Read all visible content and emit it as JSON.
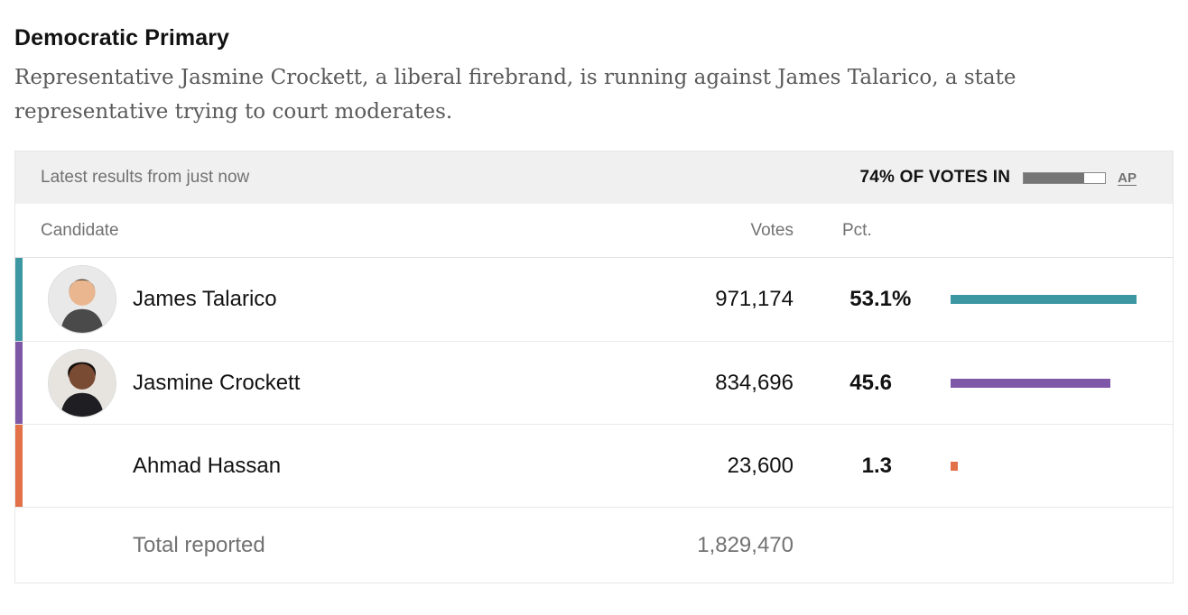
{
  "page": {
    "title": "Democratic Primary",
    "description": "Representative Jasmine Crockett, a liberal firebrand, is running against James Talarico, a state representative trying to court moderates."
  },
  "results_card": {
    "status_bar": {
      "latest_label": "Latest results from just now",
      "votes_in_label": "74% OF VOTES IN",
      "votes_in_pct": 74,
      "source_label": "AP"
    },
    "table": {
      "columns": {
        "candidate": "Candidate",
        "votes": "Votes",
        "pct": "Pct."
      },
      "candidates": [
        {
          "name": "James Talarico",
          "votes": "971,174",
          "pct": 53.1,
          "pct_display": "53.1",
          "pct_suffix": "%",
          "color": "#3d97a3",
          "has_avatar": true,
          "avatar": {
            "bg": "#e9e9e9",
            "skin": "#eab690",
            "hair": "#241f1c",
            "shirt": "#4a4a4a"
          }
        },
        {
          "name": "Jasmine Crockett",
          "votes": "834,696",
          "pct": 45.6,
          "pct_display": "45.6",
          "pct_suffix": "",
          "color": "#7e58a7",
          "has_avatar": true,
          "avatar": {
            "bg": "#e7e4e0",
            "skin": "#7a4b33",
            "hair": "#16100d",
            "shirt": "#1f1f23"
          }
        },
        {
          "name": "Ahmad Hassan",
          "votes": "23,600",
          "pct": 1.3,
          "pct_display": "1.3",
          "pct_suffix": "",
          "color": "#e2714a",
          "has_avatar": false,
          "avatar": {
            "bg": "#ececec",
            "skin": "#d9a06e",
            "hair": "#2a2420",
            "shirt": "#3a3a3a"
          }
        }
      ],
      "total": {
        "label": "Total reported",
        "votes": "1,829,470"
      }
    }
  },
  "chart_data": {
    "type": "table",
    "title": "Democratic Primary",
    "columns": [
      "Candidate",
      "Votes",
      "Pct."
    ],
    "rows": [
      [
        "James Talarico",
        971174,
        53.1
      ],
      [
        "Jasmine Crockett",
        834696,
        45.6
      ],
      [
        "Ahmad Hassan",
        23600,
        1.3
      ]
    ],
    "total_reported": 1829470,
    "pct_votes_in": 74,
    "bar_colors": [
      "#3d97a3",
      "#7e58a7",
      "#e2714a"
    ],
    "bar_scale_note": "horizontal pct bars scaled relative to leading candidate (53.1% = full 206px)",
    "source": "AP"
  }
}
